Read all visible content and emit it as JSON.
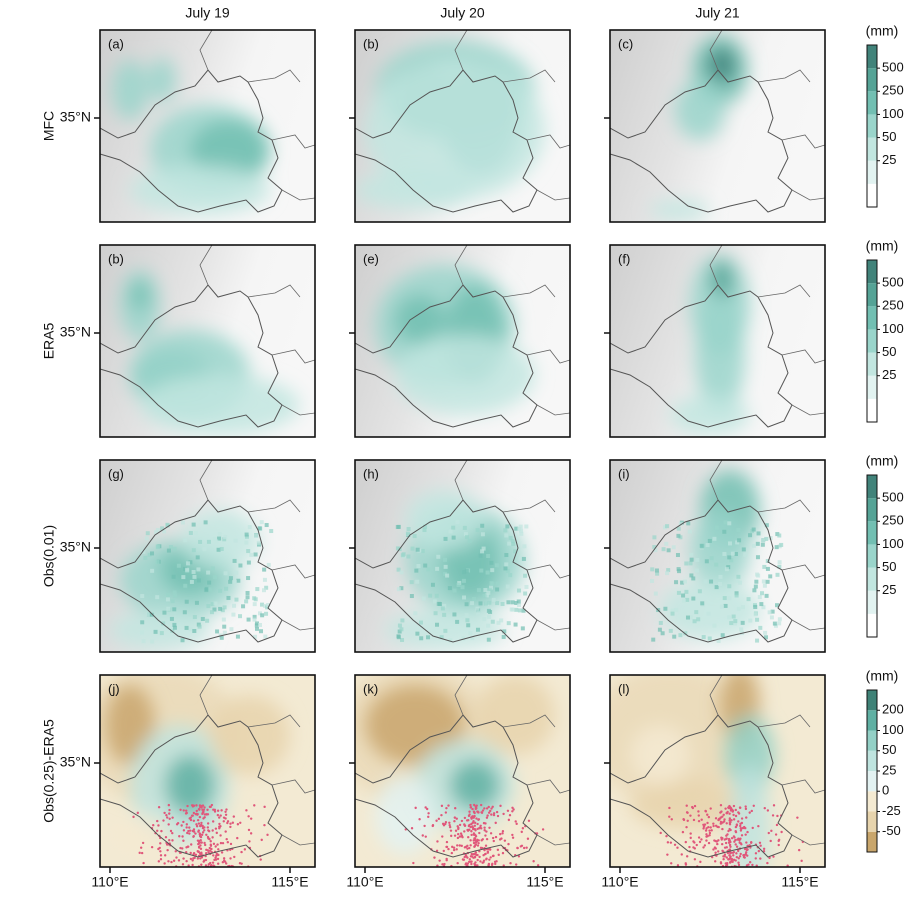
{
  "columns": [
    "July 19",
    "July 20",
    "July 21"
  ],
  "rows": [
    {
      "label": "MFC",
      "panels": [
        "(a)",
        "(b)",
        "(c)"
      ]
    },
    {
      "label": "ERA5",
      "panels": [
        "(b)",
        "(e)",
        "(f)"
      ]
    },
    {
      "label": "Obs(0.01)",
      "panels": [
        "(g)",
        "(h)",
        "(i)"
      ]
    },
    {
      "label": "Obs(0.25)-ERA5",
      "panels": [
        "(j)",
        "(k)",
        "(l)"
      ]
    }
  ],
  "y_tick": "35°N",
  "x_ticks": [
    "110°E",
    "115°E"
  ],
  "colorbars": [
    {
      "unit": "(mm)",
      "ticks": [
        500,
        250,
        100,
        50,
        25
      ],
      "colors": [
        "#ffffff",
        "#e2f3f1",
        "#c2e6e0",
        "#9ad5cb",
        "#72bfb2",
        "#55a396",
        "#41837a"
      ]
    },
    {
      "unit": "(mm)",
      "ticks": [
        500,
        250,
        100,
        50,
        25
      ],
      "colors": [
        "#ffffff",
        "#e2f3f1",
        "#c2e6e0",
        "#9ad5cb",
        "#72bfb2",
        "#55a396",
        "#41837a"
      ]
    },
    {
      "unit": "(mm)",
      "ticks": [
        500,
        250,
        100,
        50,
        25
      ],
      "colors": [
        "#ffffff",
        "#e2f3f1",
        "#c2e6e0",
        "#9ad5cb",
        "#72bfb2",
        "#55a396",
        "#41837a"
      ]
    },
    {
      "unit": "(mm)",
      "ticks": [
        200,
        100,
        50,
        25,
        0,
        -25,
        -50
      ],
      "colors": [
        "#c9a66c",
        "#e7d4ad",
        "#f4ead2",
        "#e3f2f2",
        "#bfe4df",
        "#93d0c6",
        "#5fb0a3",
        "#3f8277"
      ]
    }
  ]
}
